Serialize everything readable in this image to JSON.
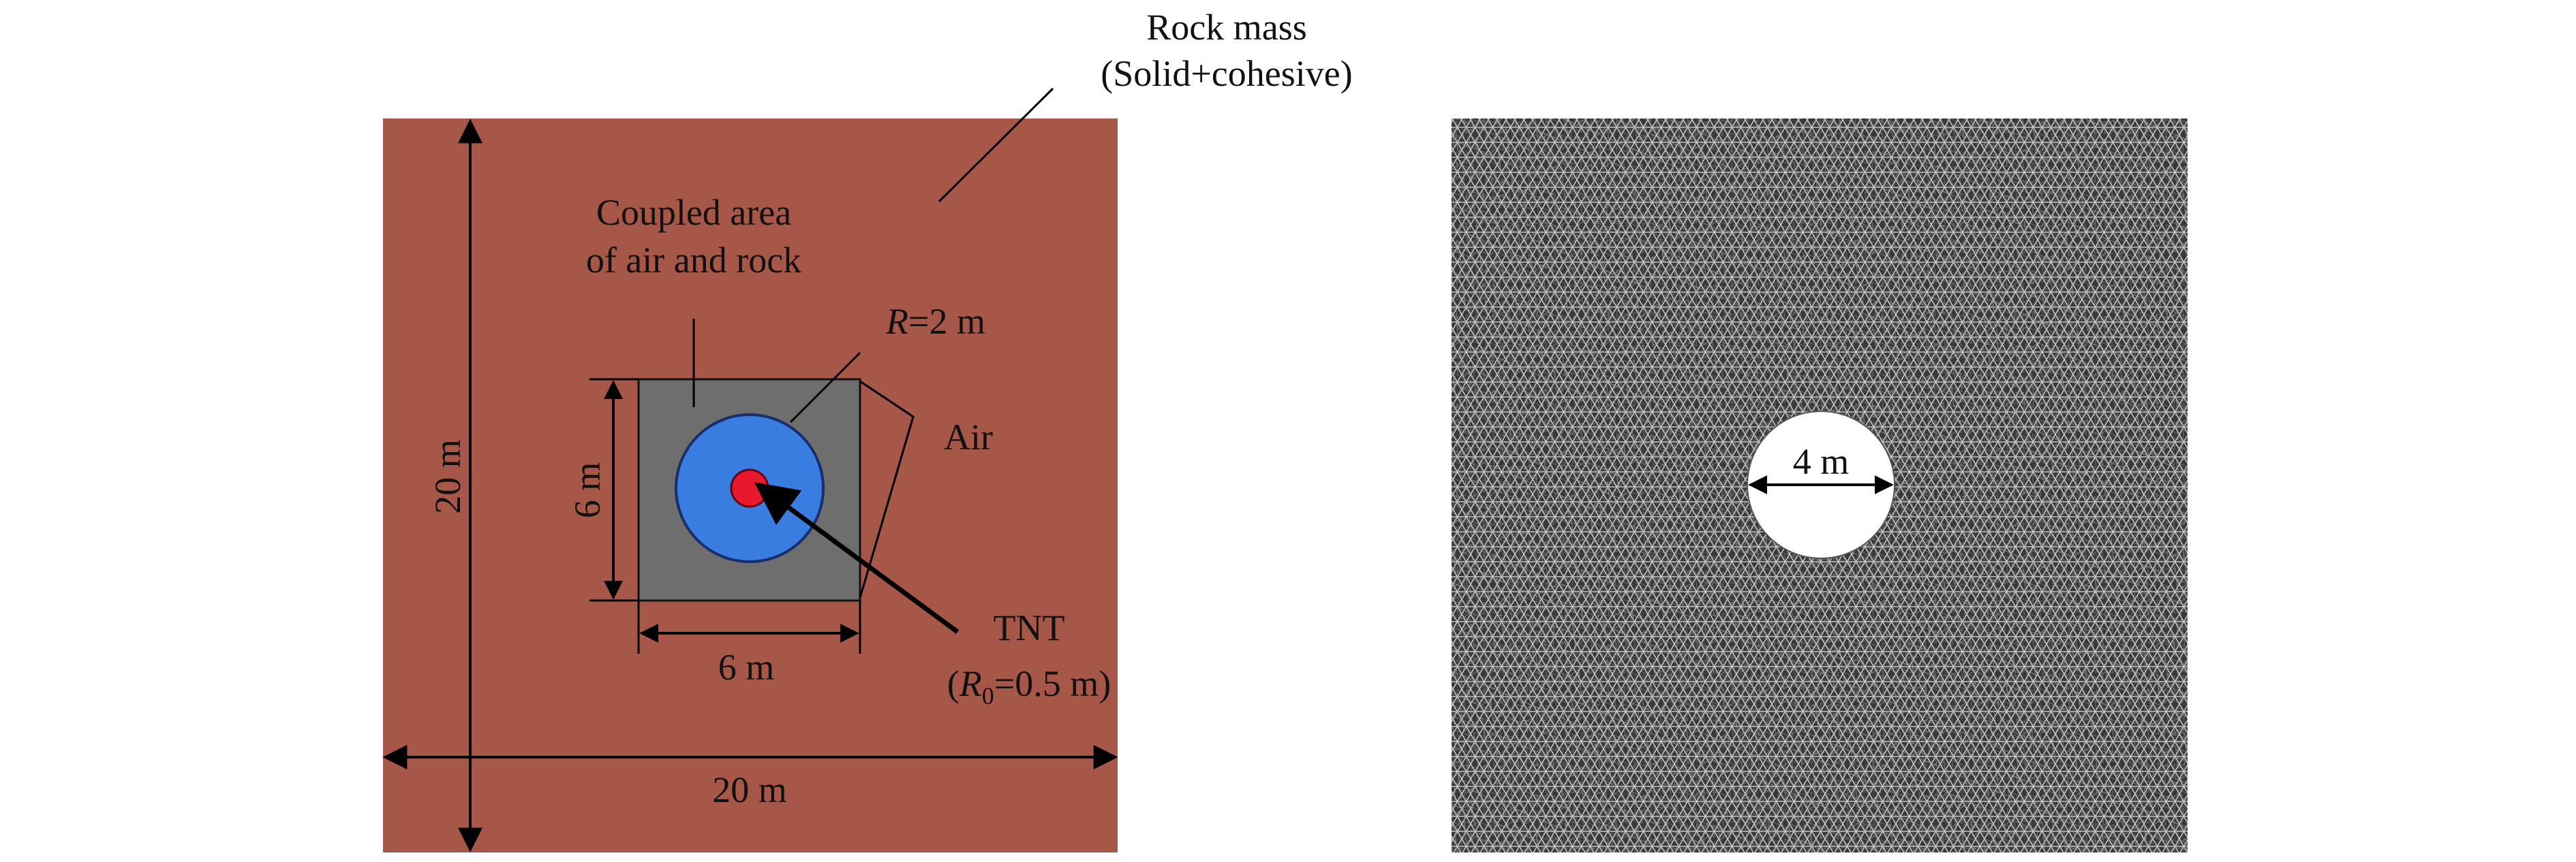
{
  "labels": {
    "rock_mass_line1": "Rock mass",
    "rock_mass_line2": "(Solid+cohesive)",
    "coupled_line1": "Coupled area",
    "coupled_line2": "of air and rock",
    "radius_symbol": "R",
    "radius_value": "=2 m",
    "air": "Air",
    "tnt": "TNT",
    "tnt_radius_open": "(",
    "tnt_radius_symbol": "R",
    "tnt_radius_sub": "0",
    "tnt_radius_value": "=0.5 m)",
    "dim_height_outer": "20 m",
    "dim_width_outer": "20 m",
    "dim_height_inner": "6 m",
    "dim_width_inner": "6 m",
    "hole_diameter": "4 m"
  },
  "colors": {
    "rock": "#a65748",
    "coupled_area": "#6e6e6e",
    "air": "#3a7de0",
    "tnt": "#e8192c",
    "mesh_background": "#3a3a3a",
    "mesh_lines": "#bdbdbd"
  }
}
